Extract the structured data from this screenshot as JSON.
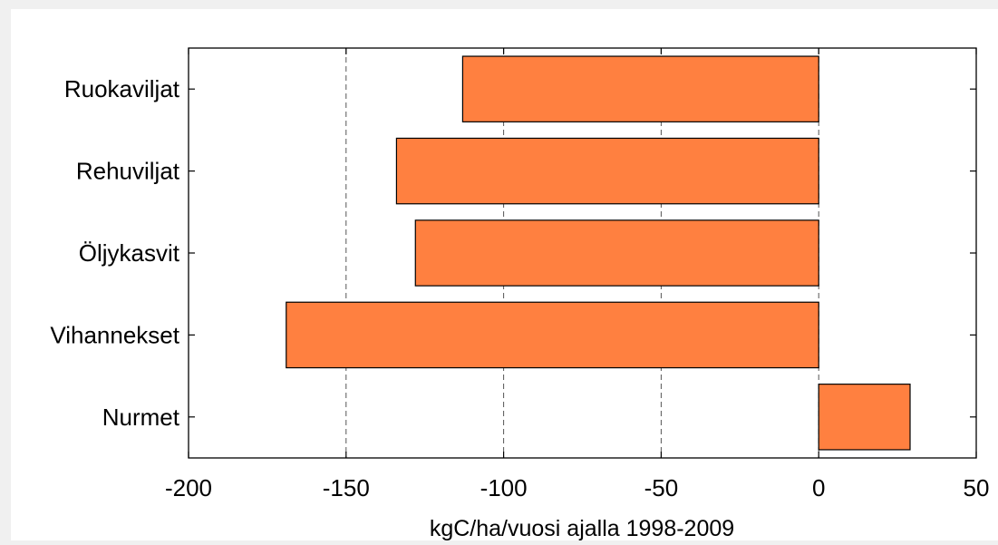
{
  "chart_data": {
    "type": "bar",
    "orientation": "horizontal",
    "categories": [
      "Ruokaviljat",
      "Rehuviljat",
      "Öljykasvit",
      "Vihannekset",
      "Nurmet"
    ],
    "values": [
      -113,
      -134,
      -128,
      -169,
      29
    ],
    "xlabel": "kgC/ha/vuosi ajalla 1998-2009",
    "xlim": [
      -200,
      50
    ],
    "xticks": [
      -200,
      -150,
      -100,
      -50,
      0,
      50
    ],
    "xtick_labels": [
      "-200",
      "-150",
      "-100",
      "-50",
      "0",
      "50"
    ],
    "grid": "x-dashed",
    "colors": {
      "bar": "#ff8040",
      "figure_bg": "#f0f0f0",
      "axes_bg": "#ffffff"
    }
  }
}
